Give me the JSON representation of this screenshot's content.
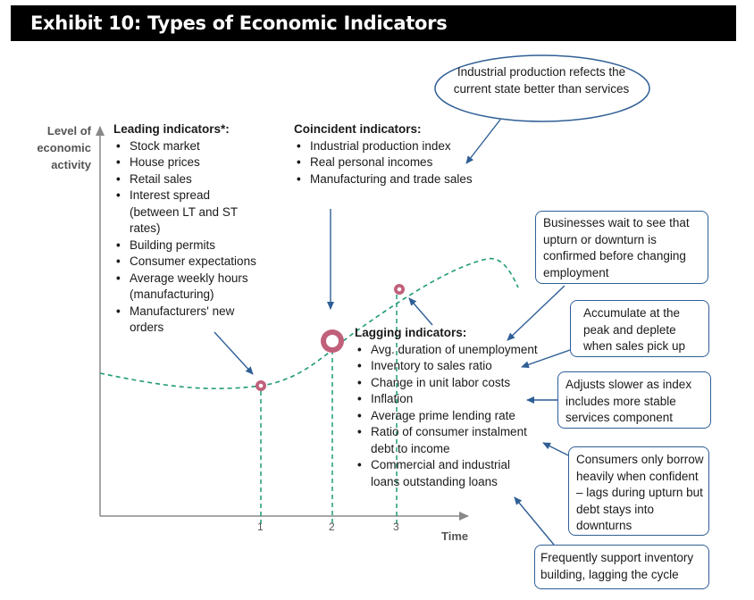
{
  "title": "Exhibit 10: Types of Economic Indicators",
  "axes": {
    "y_label_lines": [
      "Level of",
      "economic",
      "activity"
    ],
    "x_label": "Time",
    "ticks": [
      "1",
      "2",
      "3"
    ]
  },
  "leading": {
    "heading": "Leading indicators*:",
    "items": [
      "Stock market",
      "House prices",
      "Retail sales",
      "Interest spread (between LT and ST rates)",
      "Building permits",
      "Consumer expectations",
      "Average weekly hours (manufacturing)",
      "Manufacturers' new orders"
    ]
  },
  "coincident": {
    "heading": "Coincident indicators:",
    "items": [
      "Industrial production index",
      "Real personal incomes",
      "Manufacturing and trade sales"
    ]
  },
  "lagging": {
    "heading": "Lagging indicators:",
    "items": [
      "Avg. duration of unemployment",
      "Inventory to sales ratio",
      "Change in unit labor costs",
      "Inflation",
      "Average prime lending rate",
      "Ratio of consumer instalment debt to income",
      "Commercial and industrial loans outstanding loans"
    ]
  },
  "callouts": {
    "industrial": "Industrial production refects the current state better than services",
    "businesses": "Businesses wait to see that upturn or downturn is confirmed before changing employment",
    "accumulate": "Accumulate at the peak and deplete when sales pick up",
    "adjusts": "Adjusts slower as index includes more stable services component",
    "consumers": "Consumers only borrow heavily when confident – lags during upturn but debt stays into downturns",
    "frequently": "Frequently support inventory building, lagging the cycle"
  },
  "colors": {
    "curve": "#1f9a78",
    "marker": "#c0607a",
    "arrow": "#2f5f96",
    "axis": "#888888"
  }
}
